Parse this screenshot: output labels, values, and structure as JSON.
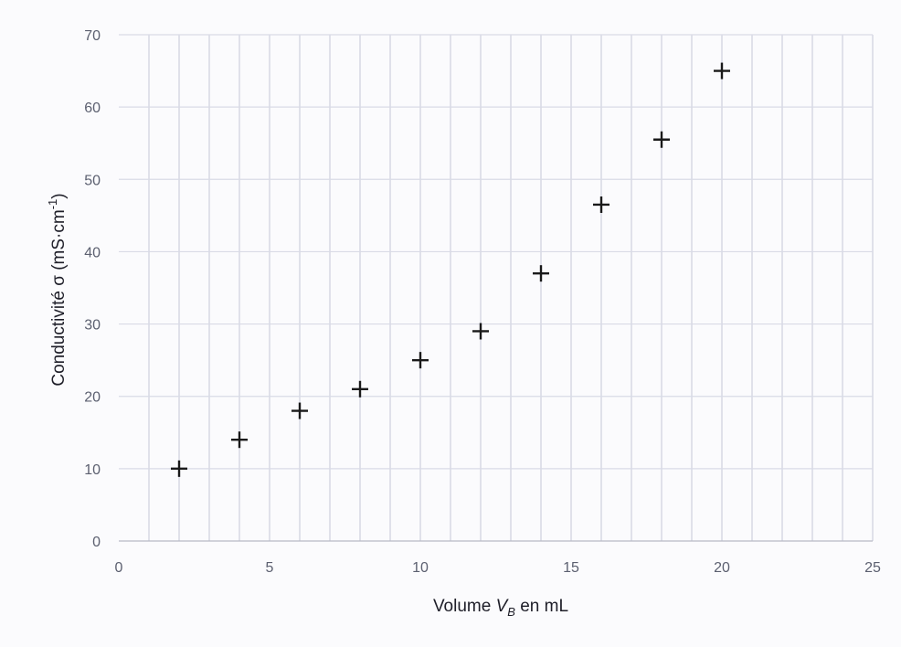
{
  "chart_data": {
    "type": "scatter",
    "title": "",
    "xlabel_parts": [
      "Volume ",
      "V",
      "B",
      " en mL"
    ],
    "ylabel_parts": [
      "Conductivité σ (mS·cm",
      "-1",
      ")"
    ],
    "xlim": [
      0,
      25
    ],
    "ylim": [
      0,
      70
    ],
    "x_ticks": [
      "0",
      "5",
      "10",
      "15",
      "20",
      "25"
    ],
    "y_ticks": [
      "0",
      "10",
      "20",
      "30",
      "40",
      "50",
      "60",
      "70"
    ],
    "grid": true,
    "marker": "plus",
    "points": [
      {
        "x": 2,
        "y": 10
      },
      {
        "x": 4,
        "y": 14
      },
      {
        "x": 6,
        "y": 18
      },
      {
        "x": 8,
        "y": 21
      },
      {
        "x": 10,
        "y": 25
      },
      {
        "x": 12,
        "y": 29
      },
      {
        "x": 14,
        "y": 37
      },
      {
        "x": 16,
        "y": 46.5
      },
      {
        "x": 18,
        "y": 55.5
      },
      {
        "x": 20,
        "y": 65
      }
    ],
    "colors": {
      "marker": "#1a1a1a",
      "grid": "#d9dbe6",
      "axis_text": "#5c6070"
    }
  }
}
